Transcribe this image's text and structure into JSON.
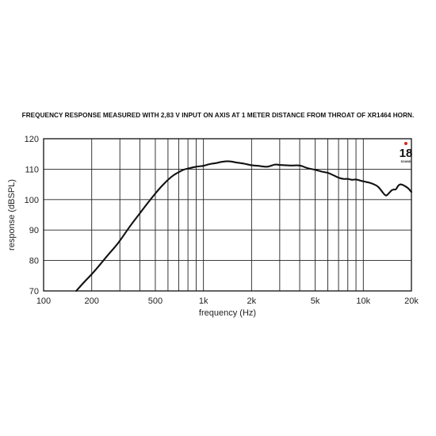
{
  "chart_data": {
    "type": "line",
    "title": "FREQUENCY RESPONSE MEASURED WITH 2,83 V INPUT ON AXIS AT 1 METER DISTANCE FROM THROAT OF XR1464 HORN.",
    "xlabel": "frequency (Hz)",
    "ylabel": "response (dBSPL)",
    "x_scale": "log",
    "xlim": [
      100,
      20000
    ],
    "ylim": [
      70,
      120
    ],
    "grid": true,
    "x_ticks": [
      {
        "value": 100,
        "label": "100"
      },
      {
        "value": 200,
        "label": "200"
      },
      {
        "value": 500,
        "label": "500"
      },
      {
        "value": 1000,
        "label": "1k"
      },
      {
        "value": 2000,
        "label": "2k"
      },
      {
        "value": 5000,
        "label": "5k"
      },
      {
        "value": 10000,
        "label": "10k"
      },
      {
        "value": 20000,
        "label": "20k"
      }
    ],
    "y_ticks": [
      {
        "value": 70,
        "label": "70"
      },
      {
        "value": 80,
        "label": "80"
      },
      {
        "value": 90,
        "label": "90"
      },
      {
        "value": 100,
        "label": "100"
      },
      {
        "value": 110,
        "label": "110"
      },
      {
        "value": 120,
        "label": "120"
      }
    ],
    "minor_x_grid": [
      100,
      200,
      300,
      400,
      500,
      600,
      700,
      800,
      900,
      1000,
      2000,
      3000,
      4000,
      5000,
      6000,
      7000,
      8000,
      9000,
      10000,
      20000
    ],
    "series": [
      {
        "x": [
          160,
          180,
          200,
          220,
          250,
          280,
          300,
          350,
          400,
          450,
          500,
          550,
          600,
          650,
          700,
          750,
          800,
          900,
          1000,
          1100,
          1200,
          1300,
          1400,
          1500,
          1600,
          1800,
          2000,
          2200,
          2500,
          2800,
          3000,
          3500,
          4000,
          4500,
          5000,
          5500,
          6000,
          6500,
          7000,
          7500,
          8000,
          8500,
          9000,
          10000,
          11000,
          12000,
          12500,
          13000,
          13500,
          14000,
          15000,
          15500,
          16000,
          16500,
          17000,
          17500,
          18000,
          19000,
          20000
        ],
        "values": [
          70.0,
          73.0,
          75.5,
          78.0,
          81.5,
          84.5,
          86.5,
          91.5,
          95.5,
          99.0,
          102.0,
          104.5,
          106.5,
          108.0,
          109.0,
          109.8,
          110.2,
          110.8,
          111.1,
          111.7,
          112.0,
          112.4,
          112.6,
          112.5,
          112.2,
          111.8,
          111.3,
          111.1,
          110.8,
          111.5,
          111.4,
          111.2,
          111.2,
          110.3,
          109.8,
          109.2,
          108.8,
          108.0,
          107.2,
          106.8,
          106.8,
          106.5,
          106.6,
          106.0,
          105.5,
          104.7,
          104.0,
          102.9,
          101.8,
          101.4,
          103.0,
          103.3,
          103.4,
          104.5,
          105.0,
          104.9,
          104.6,
          103.8,
          102.5
        ]
      }
    ]
  },
  "logo": {
    "number": "18",
    "text": "SOUND"
  }
}
